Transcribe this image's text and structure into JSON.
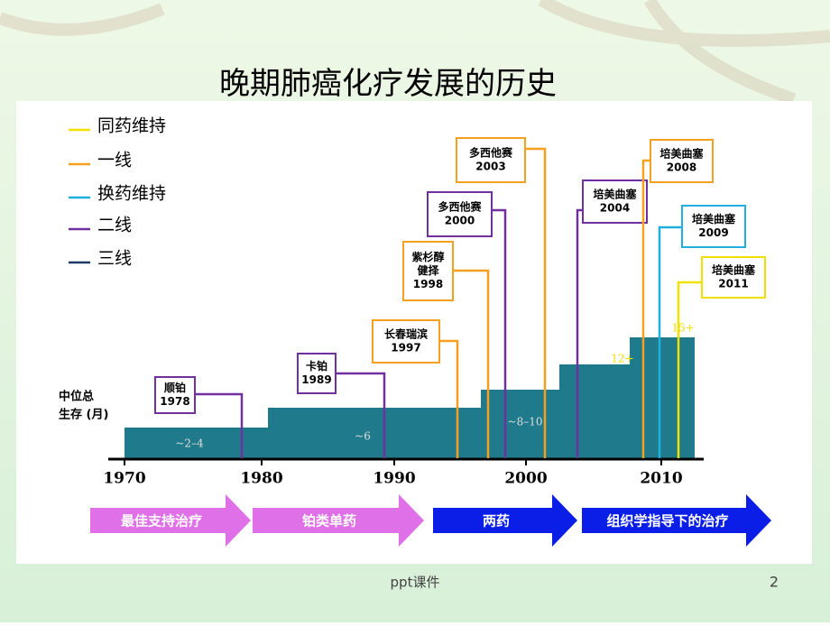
{
  "title": "晚期肺癌化疗发展的历史",
  "legend": [
    "同药维持",
    "一线",
    "换药维持",
    "二线",
    "三线"
  ],
  "y_label": [
    "中位总",
    "生存 (月)"
  ],
  "survival": [
    "~2–4",
    "~6",
    "~8–10",
    "12+",
    "15+"
  ],
  "axis_years": [
    "1970",
    "1980",
    "1990",
    "2000",
    "2010"
  ],
  "drugs": [
    {
      "lines": [
        "顺铂",
        "1978"
      ]
    },
    {
      "lines": [
        "卡铂",
        "1989"
      ]
    },
    {
      "lines": [
        "长春瑞滨",
        "1997"
      ]
    },
    {
      "lines": [
        "紫杉醇",
        "健择",
        "1998"
      ]
    },
    {
      "lines": [
        "多西他赛",
        "2000"
      ]
    },
    {
      "lines": [
        "多西他赛",
        "2003"
      ]
    },
    {
      "lines": [
        "培美曲塞",
        "2004"
      ]
    },
    {
      "lines": [
        "培美曲塞",
        "2008"
      ]
    },
    {
      "lines": [
        "培美曲塞",
        "2009"
      ]
    },
    {
      "lines": [
        "培美曲塞",
        "2011"
      ]
    }
  ],
  "eras": [
    "最佳支持治疗",
    "铂类单药",
    "两药",
    "组织学指导下的治疗"
  ],
  "footer": {
    "text": "ppt课件",
    "page": "2"
  }
}
